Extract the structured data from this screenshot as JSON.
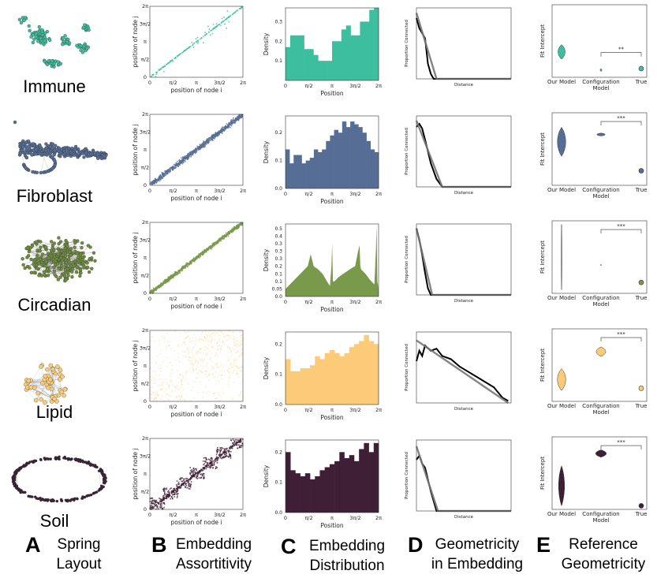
{
  "figure": {
    "columns": [
      {
        "letter": "A",
        "line1": "Spring",
        "line2": "Layout"
      },
      {
        "letter": "B",
        "line1": "Embedding",
        "line2": "Assortitivity"
      },
      {
        "letter": "C",
        "line1": "Embedding",
        "line2": "Distribution"
      },
      {
        "letter": "D",
        "line1": "Geometricity",
        "line2": "in Embedding"
      },
      {
        "letter": "E",
        "line1": "Reference",
        "line2": "Geometricity"
      }
    ],
    "rows": [
      {
        "name": "Immune",
        "color": "#3dbf9f"
      },
      {
        "name": "Fibroblast",
        "color": "#566e96"
      },
      {
        "name": "Circadian",
        "color": "#7a9a4b"
      },
      {
        "name": "Lipid",
        "color": "#fbcb78"
      },
      {
        "name": "Soil",
        "color": "#3e1f35"
      }
    ],
    "axis_text": {
      "b_xlabel": "position of node i",
      "b_ylabel": "position of node j",
      "c_xlabel": "Position",
      "c_ylabel": "Density",
      "d_xlabel": "Distance",
      "d_ylabel": "Proportion Connected",
      "e_ylabel": "Fit Intercept",
      "e_categories": [
        "Our Model",
        "Configuration Model",
        "True"
      ],
      "pi_ticks": [
        "0",
        "π/2",
        "π",
        "3π/2",
        "2π"
      ]
    }
  },
  "chart_data": [
    {
      "type": "scatter",
      "panel": "B-Immune",
      "xlabel": "position of node i",
      "ylabel": "position of node j",
      "xlim": [
        0,
        6.283
      ],
      "ylim": [
        0,
        6.283
      ],
      "pattern": "sparse diagonal clusters"
    },
    {
      "type": "scatter",
      "panel": "B-Fibroblast",
      "xlabel": "position of node i",
      "ylabel": "position of node j",
      "xlim": [
        0,
        6.283
      ],
      "ylim": [
        0,
        6.283
      ],
      "pattern": "dense diagonal band"
    },
    {
      "type": "scatter",
      "panel": "B-Circadian",
      "xlabel": "position of node i",
      "ylabel": "position of node j",
      "xlim": [
        0,
        6.283
      ],
      "ylim": [
        0,
        6.283
      ],
      "pattern": "dense diagonal band"
    },
    {
      "type": "scatter",
      "panel": "B-Lipid",
      "xlabel": "position of node i",
      "ylabel": "position of node j",
      "xlim": [
        0,
        6.283
      ],
      "ylim": [
        0,
        6.283
      ],
      "pattern": "block structure"
    },
    {
      "type": "scatter",
      "panel": "B-Soil",
      "xlabel": "position of node i",
      "ylabel": "position of node j",
      "xlim": [
        0,
        6.283
      ],
      "ylim": [
        0,
        6.283
      ],
      "pattern": "diagonal blocks"
    },
    {
      "type": "bar",
      "panel": "C-Immune",
      "xlabel": "Position",
      "ylabel": "Density",
      "ylim": [
        0,
        0.37
      ],
      "yticks": [
        0.1,
        0.2,
        0.3
      ],
      "values": [
        0.17,
        0.23,
        0.23,
        0.23,
        0.16,
        0.16,
        0.13,
        0.1,
        0.1,
        0.1,
        0.2,
        0.2,
        0.26,
        0.28,
        0.23,
        0.23,
        0.3,
        0.3,
        0.36,
        0.37
      ]
    },
    {
      "type": "bar",
      "panel": "C-Fibroblast",
      "xlabel": "Position",
      "ylabel": "Density",
      "ylim": [
        0,
        0.26
      ],
      "yticks": [
        0.0,
        0.1,
        0.2
      ],
      "values": [
        0.14,
        0.09,
        0.12,
        0.12,
        0.09,
        0.1,
        0.11,
        0.14,
        0.13,
        0.14,
        0.17,
        0.19,
        0.21,
        0.2,
        0.24,
        0.22,
        0.24,
        0.23,
        0.22,
        0.2,
        0.17,
        0.14,
        0.13
      ]
    },
    {
      "type": "area",
      "panel": "C-Circadian",
      "xlabel": "Position",
      "ylabel": "Density",
      "ylim": [
        0,
        0.48
      ],
      "yticks": [
        0.0,
        0.05,
        0.1,
        0.15,
        0.2,
        0.25,
        0.3,
        0.35,
        0.4,
        0.45
      ],
      "x": [
        0,
        0.3,
        0.6,
        0.9,
        1.2,
        1.5,
        1.7,
        1.9,
        2.2,
        2.5,
        2.8,
        3.0,
        3.1,
        3.15,
        3.2,
        3.3,
        3.6,
        3.9,
        4.2,
        4.5,
        4.7,
        4.9,
        5.0,
        5.05,
        5.1,
        5.4,
        5.7,
        6.0,
        6.1,
        6.15,
        6.2,
        6.283
      ],
      "values": [
        0.05,
        0.08,
        0.11,
        0.14,
        0.17,
        0.2,
        0.28,
        0.2,
        0.18,
        0.15,
        0.1,
        0.07,
        0.2,
        0.35,
        0.1,
        0.1,
        0.13,
        0.15,
        0.17,
        0.19,
        0.2,
        0.3,
        0.34,
        0.2,
        0.18,
        0.15,
        0.11,
        0.08,
        0.3,
        0.47,
        0.1,
        0.05
      ]
    },
    {
      "type": "bar",
      "panel": "C-Lipid",
      "xlabel": "Position",
      "ylabel": "Density",
      "ylim": [
        0,
        0.24
      ],
      "yticks": [
        0.0,
        0.1,
        0.2
      ],
      "values": [
        0.15,
        0.11,
        0.11,
        0.12,
        0.12,
        0.13,
        0.16,
        0.15,
        0.17,
        0.18,
        0.17,
        0.16,
        0.17,
        0.19,
        0.2,
        0.21,
        0.23,
        0.21,
        0.2
      ]
    },
    {
      "type": "bar",
      "panel": "C-Soil",
      "xlabel": "Position",
      "ylabel": "Density",
      "ylim": [
        0,
        0.24
      ],
      "yticks": [
        0.0,
        0.1,
        0.2
      ],
      "values": [
        0.2,
        0.14,
        0.13,
        0.12,
        0.13,
        0.11,
        0.12,
        0.14,
        0.15,
        0.16,
        0.17,
        0.2,
        0.18,
        0.19,
        0.17,
        0.21,
        0.23,
        0.2,
        0.23
      ]
    },
    {
      "type": "line",
      "panel": "D-Immune",
      "xlabel": "Distance",
      "ylabel": "Proportion Connected",
      "xlim": [
        0,
        3.3
      ],
      "ylim": [
        0,
        0.14
      ],
      "series": [
        {
          "x": [
            0,
            0.1,
            0.2,
            0.3,
            0.4,
            0.5,
            0.6,
            1.0,
            3.3
          ],
          "values": [
            0.12,
            0.1,
            0.09,
            0.08,
            0.03,
            0.01,
            0,
            0,
            0
          ]
        }
      ],
      "fit": [
        [
          0,
          0.13
        ],
        [
          0.7,
          0
        ],
        [
          3.3,
          0
        ]
      ]
    },
    {
      "type": "line",
      "panel": "D-Fibroblast",
      "xlabel": "Distance",
      "ylabel": "Proportion Connected",
      "xlim": [
        0,
        3.3
      ],
      "ylim": [
        0,
        0.45
      ],
      "series": [
        {
          "x": [
            0,
            0.1,
            0.2,
            0.3,
            0.5,
            0.7,
            0.9,
            3.3
          ],
          "values": [
            0.38,
            0.4,
            0.37,
            0.3,
            0.15,
            0.05,
            0,
            0
          ]
        }
      ],
      "fit": [
        [
          0,
          0.42
        ],
        [
          0.9,
          0
        ],
        [
          3.3,
          0
        ]
      ]
    },
    {
      "type": "line",
      "panel": "D-Circadian",
      "xlabel": "Distance",
      "ylabel": "Proportion Connected",
      "xlim": [
        0,
        3.3
      ],
      "ylim": [
        0,
        0.32
      ],
      "series": [
        {
          "x": [
            0,
            0.1,
            0.2,
            0.3,
            0.4,
            0.5,
            3.3
          ],
          "values": [
            0.3,
            0.25,
            0.18,
            0.1,
            0.03,
            0,
            0
          ]
        }
      ],
      "fit": [
        [
          0,
          0.3
        ],
        [
          0.55,
          0
        ],
        [
          3.3,
          0
        ]
      ]
    },
    {
      "type": "line",
      "panel": "D-Lipid",
      "xlabel": "Distance",
      "ylabel": "Proportion Connected",
      "xlim": [
        0,
        3.3
      ],
      "ylim": [
        0,
        0.68
      ],
      "series": [
        {
          "x": [
            0,
            0.1,
            0.2,
            0.3,
            0.5,
            0.7,
            0.9,
            1.2,
            1.5,
            1.8,
            2.1,
            2.4,
            2.7,
            3.0,
            3.2
          ],
          "values": [
            0.4,
            0.5,
            0.45,
            0.55,
            0.5,
            0.52,
            0.45,
            0.42,
            0.35,
            0.3,
            0.25,
            0.2,
            0.15,
            0.05,
            0.02
          ]
        }
      ],
      "fit": [
        [
          0,
          0.6
        ],
        [
          3.2,
          0.0
        ]
      ]
    },
    {
      "type": "line",
      "panel": "D-Soil",
      "xlabel": "Distance",
      "ylabel": "Proportion Connected",
      "xlim": [
        0,
        3.3
      ],
      "ylim": [
        0,
        0.9
      ],
      "series": [
        {
          "x": [
            0,
            0.1,
            0.2,
            0.3,
            0.5,
            0.7,
            3.3
          ],
          "values": [
            0.65,
            0.7,
            0.6,
            0.55,
            0.25,
            0,
            0
          ]
        }
      ],
      "fit": [
        [
          0,
          0.82
        ],
        [
          0.75,
          0
        ],
        [
          3.3,
          0
        ]
      ]
    },
    {
      "type": "violin",
      "panel": "E-Immune",
      "ylabel": "Fit Intercept",
      "categories": [
        "Our Model",
        "Configuration Model",
        "True"
      ],
      "significance": "**"
    },
    {
      "type": "violin",
      "panel": "E-Fibroblast",
      "ylabel": "Fit Intercept",
      "categories": [
        "Our Model",
        "Configuration Model",
        "True"
      ],
      "significance": "***"
    },
    {
      "type": "violin",
      "panel": "E-Circadian",
      "ylabel": "Fit Intercept",
      "categories": [
        "Our Model",
        "Configuration Model",
        "True"
      ],
      "significance": "***"
    },
    {
      "type": "violin",
      "panel": "E-Lipid",
      "ylabel": "Fit Intercept",
      "categories": [
        "Our Model",
        "Configuration Model",
        "True"
      ],
      "significance": "***"
    },
    {
      "type": "violin",
      "panel": "E-Soil",
      "ylabel": "Fit Intercept",
      "categories": [
        "Our Model",
        "Configuration Model",
        "True"
      ],
      "significance": "***"
    }
  ]
}
